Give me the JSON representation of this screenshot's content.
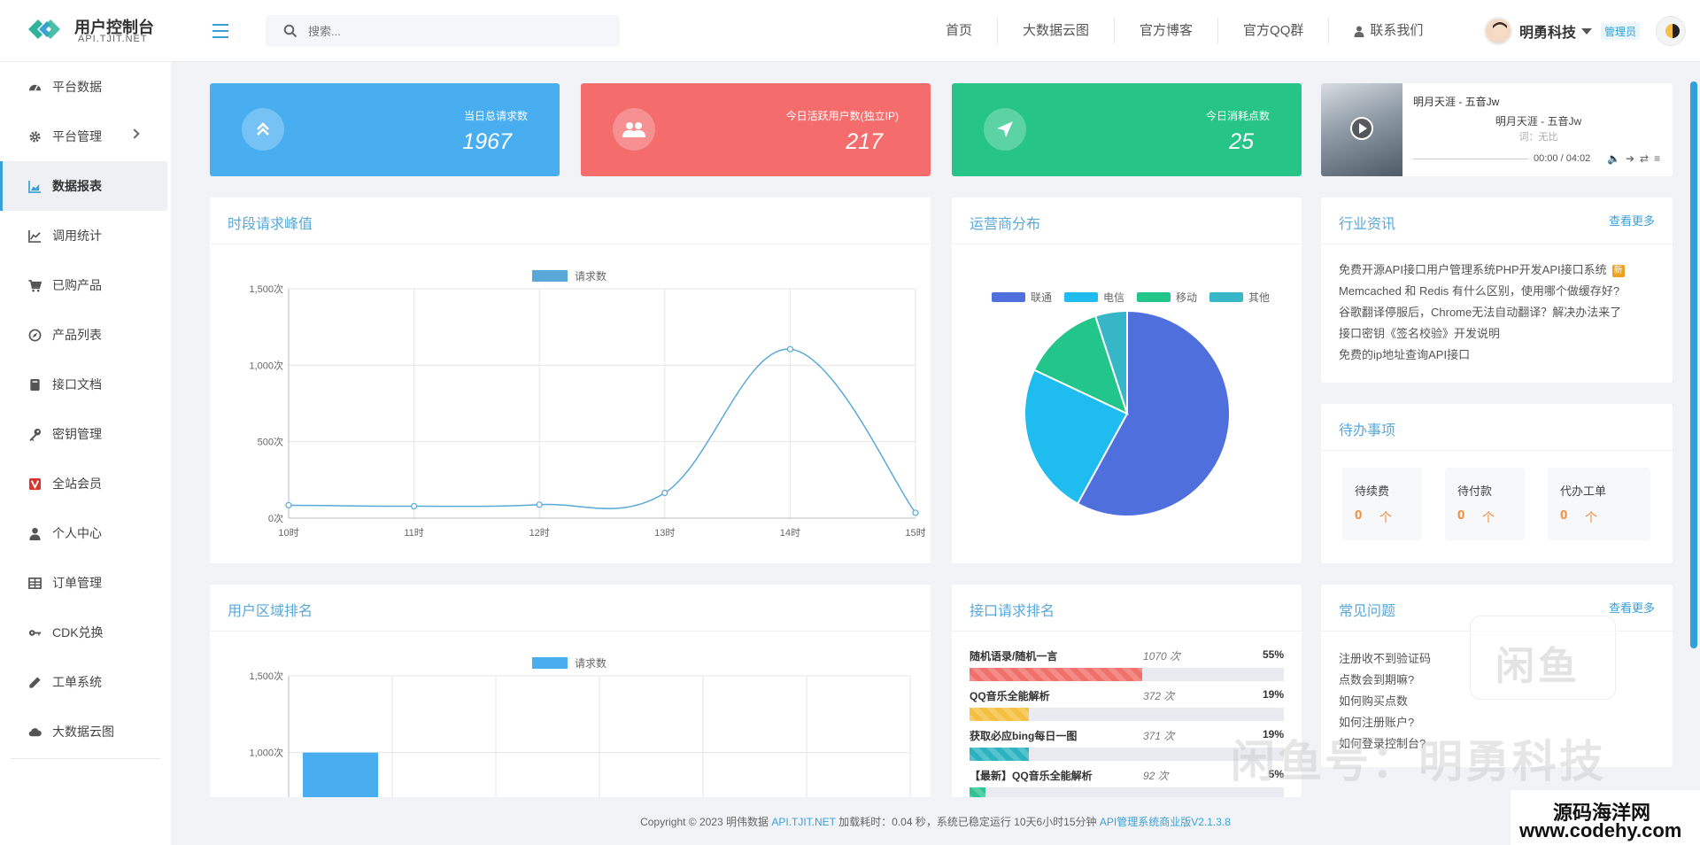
{
  "app": {
    "title": "用户控制台",
    "subtitle": "API.TJIT.NET"
  },
  "search": {
    "placeholder": "搜索..."
  },
  "topnav": [
    {
      "label": "首页",
      "icon": ""
    },
    {
      "label": "大数据云图",
      "icon": ""
    },
    {
      "label": "官方博客",
      "icon": ""
    },
    {
      "label": "官方QQ群",
      "icon": ""
    },
    {
      "label": "联系我们",
      "icon": "user-icon"
    }
  ],
  "user": {
    "name": "明勇科技",
    "role": "管理员"
  },
  "sidebar": {
    "items": [
      {
        "label": "平台数据",
        "icon": "dashboard-icon"
      },
      {
        "label": "平台管理",
        "icon": "gear-icon"
      },
      {
        "label": "数据报表",
        "icon": "area-chart-icon"
      },
      {
        "label": "调用统计",
        "icon": "line-chart-icon"
      },
      {
        "label": "已购产品",
        "icon": "cart-icon"
      },
      {
        "label": "产品列表",
        "icon": "compass-icon"
      },
      {
        "label": "接口文档",
        "icon": "book-icon"
      },
      {
        "label": "密钥管理",
        "icon": "key-icon"
      },
      {
        "label": "全站会员",
        "icon": "vip-icon"
      },
      {
        "label": "个人中心",
        "icon": "user-icon"
      },
      {
        "label": "订单管理",
        "icon": "table-icon"
      },
      {
        "label": "CDK兑换",
        "icon": "key-icon"
      },
      {
        "label": "工单系统",
        "icon": "pencil-icon"
      },
      {
        "label": "大数据云图",
        "icon": "cloud-icon"
      }
    ],
    "active_index": 2
  },
  "stats": [
    {
      "label": "当日总请求数",
      "value": "1967",
      "color": "#49aef0",
      "icon": "double-up-icon"
    },
    {
      "label": "今日活跃用户数(独立IP)",
      "value": "217",
      "color": "#f56c6c",
      "icon": "users-icon"
    },
    {
      "label": "今日消耗点数",
      "value": "25",
      "color": "#26c486",
      "icon": "send-icon"
    }
  ],
  "music": {
    "title": "明月天涯 - 五音Jw",
    "subtitle": "明月天涯 - 五音Jw",
    "lyric": "词：无比",
    "time": "00:00 / 04:02"
  },
  "panels": {
    "peak": {
      "title": "时段请求峰值"
    },
    "operator": {
      "title": "运营商分布"
    },
    "news": {
      "title": "行业资讯",
      "more": "查看更多"
    },
    "todo": {
      "title": "待办事项"
    },
    "region": {
      "title": "用户区域排名"
    },
    "api_rank": {
      "title": "接口请求排名"
    },
    "faq": {
      "title": "常见问题",
      "more": "查看更多"
    }
  },
  "news": [
    {
      "text": "免费开源API接口用户管理系统PHP开发API接口系统",
      "badge": "新"
    },
    {
      "text": "Memcached 和 Redis 有什么区别，使用哪个做缓存好?",
      "badge": ""
    },
    {
      "text": "谷歌翻译停服后，Chrome无法自动翻译？解决办法来了",
      "badge": ""
    },
    {
      "text": "接口密钥《签名校验》开发说明",
      "badge": ""
    },
    {
      "text": "免费的ip地址查询API接口",
      "badge": ""
    }
  ],
  "todo": [
    {
      "label": "待续费",
      "value": "0",
      "unit": "个"
    },
    {
      "label": "待付款",
      "value": "0",
      "unit": "个"
    },
    {
      "label": "代办工单",
      "value": "0",
      "unit": "个"
    }
  ],
  "api_rank": [
    {
      "name": "随机语录/随机一言",
      "count": "1070 次",
      "pct": "55%",
      "ratio": 0.55,
      "color": "#f0706a"
    },
    {
      "name": "QQ音乐全能解析",
      "count": "372 次",
      "pct": "19%",
      "ratio": 0.19,
      "color": "#f5c040"
    },
    {
      "name": "获取必应bing每日一图",
      "count": "371 次",
      "pct": "19%",
      "ratio": 0.19,
      "color": "#2cb3c0"
    },
    {
      "name": "【最新】QQ音乐全能解析",
      "count": "92 次",
      "pct": "5%",
      "ratio": 0.05,
      "color": "#2ec38f"
    }
  ],
  "faq": [
    {
      "text": "注册收不到验证码"
    },
    {
      "text": "点数会到期嘛?"
    },
    {
      "text": "如何购买点数"
    },
    {
      "text": "如何注册账户?"
    },
    {
      "text": "如何登录控制台?"
    }
  ],
  "watermark": {
    "badge": "闲鱼",
    "text": "闲鱼号：明勇科技"
  },
  "brand_tag": {
    "line1": "源码海洋网",
    "line2": "www.codehy.com"
  },
  "footer": {
    "copyright": "Copyright © 2023 明伟数据 ",
    "site": "API.TJIT.NET",
    "runtime": " 加载耗时：0.04 秒，系统已稳定运行 10天6小时15分钟 ",
    "version": "API管理系统商业版V2.1.3.8"
  },
  "chart_data": [
    {
      "type": "line",
      "legend": [
        "请求数"
      ],
      "categories": [
        "10时",
        "11时",
        "12时",
        "13时",
        "14时",
        "15时"
      ],
      "series": [
        {
          "name": "请求数",
          "values": [
            85,
            78,
            88,
            165,
            1105,
            35
          ]
        }
      ],
      "yticks": [
        "0次",
        "500次",
        "1,000次",
        "1,500次"
      ],
      "ylim": [
        0,
        1500
      ],
      "color": "#5aa8d8",
      "grid": true,
      "legend_position": "top"
    },
    {
      "type": "pie",
      "legend": [
        "联通",
        "电信",
        "移动",
        "其他"
      ],
      "values": [
        58,
        24,
        13,
        5
      ],
      "colors": [
        "#4f6fdc",
        "#1fbcf0",
        "#22c58a",
        "#36b6c6"
      ],
      "legend_position": "top"
    },
    {
      "type": "bar",
      "legend": [
        "请求数"
      ],
      "categories": [
        ""
      ],
      "series": [
        {
          "name": "请求数",
          "values": [
            1000
          ]
        }
      ],
      "yticks": [
        "1,000次",
        "1,500次"
      ],
      "ylim": [
        0,
        1500
      ],
      "color": "#49aef0",
      "grid": true,
      "legend_position": "top"
    }
  ]
}
